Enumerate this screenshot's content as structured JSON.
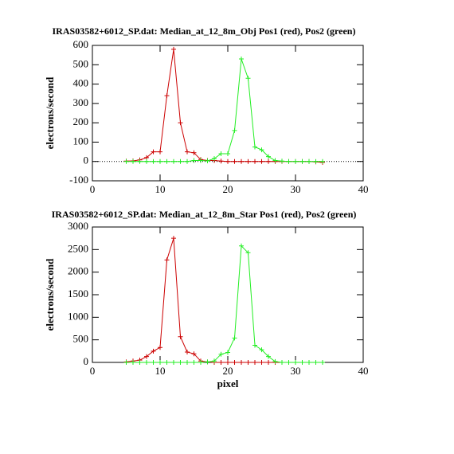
{
  "chart_data": [
    {
      "type": "line",
      "title": "IRAS03582+6012_SP.dat: Median_at_12_8m_Obj Pos1 (red), Pos2 (green)",
      "ylabel": "electrons/second",
      "x": [
        5,
        6,
        7,
        8,
        9,
        10,
        11,
        12,
        13,
        14,
        15,
        16,
        17,
        18,
        19,
        20,
        21,
        22,
        23,
        24,
        25,
        26,
        27,
        28,
        29,
        30,
        31,
        32,
        33,
        34
      ],
      "series": [
        {
          "color": "#cc0000",
          "values": [
            2,
            3,
            8,
            20,
            50,
            50,
            340,
            580,
            200,
            50,
            45,
            10,
            5,
            5,
            2,
            0,
            0,
            0,
            0,
            0,
            0,
            0,
            0,
            0,
            0,
            0,
            0,
            0,
            -2,
            -5
          ]
        },
        {
          "color": "#22ee22",
          "values": [
            0,
            0,
            0,
            0,
            0,
            0,
            0,
            0,
            0,
            0,
            5,
            5,
            3,
            15,
            40,
            40,
            160,
            530,
            430,
            75,
            60,
            25,
            5,
            2,
            0,
            0,
            0,
            0,
            0,
            0
          ]
        }
      ],
      "xlim": [
        0,
        40
      ],
      "xticks": [
        0,
        10,
        20,
        30,
        40
      ],
      "ylim": [
        -100,
        600
      ],
      "yticks": [
        -100,
        0,
        100,
        200,
        300,
        400,
        500,
        600
      ],
      "zero_line": true,
      "marker": "plus"
    },
    {
      "type": "line",
      "title": "IRAS03582+6012_SP.dat: Median_at_12_8m_Star Pos1 (red), Pos2 (green)",
      "ylabel": "electrons/second",
      "xlabel": "pixel",
      "x": [
        5,
        6,
        7,
        8,
        9,
        10,
        11,
        12,
        13,
        14,
        15,
        16,
        17,
        18,
        19,
        20,
        21,
        22,
        23,
        24,
        25,
        26,
        27,
        28,
        29,
        30,
        31,
        32,
        33,
        34
      ],
      "series": [
        {
          "color": "#cc0000",
          "values": [
            10,
            30,
            50,
            130,
            250,
            330,
            2270,
            2750,
            570,
            230,
            190,
            30,
            10,
            0,
            0,
            0,
            0,
            0,
            0,
            0,
            0,
            0,
            0,
            0,
            0,
            0,
            0,
            0,
            0,
            0
          ]
        },
        {
          "color": "#22ee22",
          "values": [
            0,
            0,
            0,
            0,
            0,
            0,
            0,
            0,
            0,
            0,
            0,
            0,
            10,
            30,
            180,
            220,
            540,
            2580,
            2430,
            380,
            280,
            130,
            20,
            0,
            0,
            0,
            0,
            0,
            0,
            0
          ]
        }
      ],
      "xlim": [
        0,
        40
      ],
      "xticks": [
        0,
        10,
        20,
        30,
        40
      ],
      "ylim": [
        0,
        3000
      ],
      "yticks": [
        0,
        500,
        1000,
        1500,
        2000,
        2500,
        3000
      ],
      "marker": "plus"
    }
  ]
}
